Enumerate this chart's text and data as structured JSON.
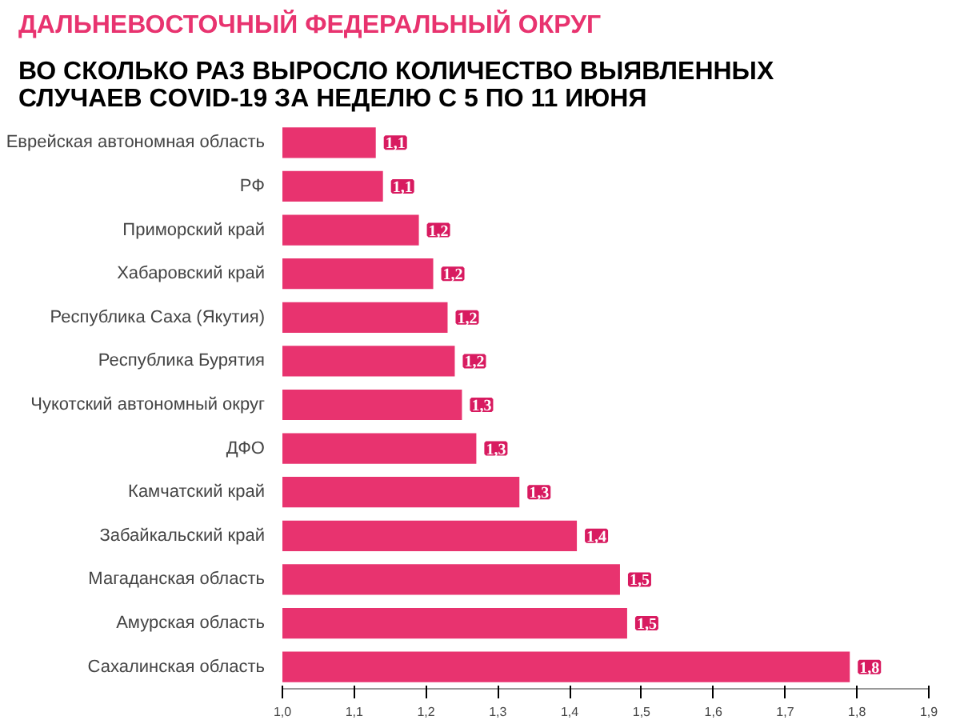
{
  "chart_data": {
    "type": "bar",
    "orientation": "horizontal",
    "title": "ДАЛЬНЕВОСТОЧНЫЙ ФЕДЕРАЛЬНЫЙ ОКРУГ",
    "subtitle": "ВО СКОЛЬКО РАЗ ВЫРОСЛО КОЛИЧЕСТВО ВЫЯВЛЕННЫХ СЛУЧАЕВ COVID-19 ЗА НЕДЕЛЮ С 5 ПО 11 ИЮНЯ",
    "categories": [
      "Еврейская автономная область",
      "РФ",
      "Приморский край",
      "Хабаровский край",
      "Республика Саха (Якутия)",
      "Республика Бурятия",
      "Чукотский автономный округ",
      "ДФО",
      "Камчатский край",
      "Забайкальский край",
      "Магаданская область",
      "Амурская область",
      "Сахалинская область"
    ],
    "values": [
      1.13,
      1.14,
      1.19,
      1.21,
      1.23,
      1.24,
      1.25,
      1.27,
      1.33,
      1.41,
      1.47,
      1.48,
      1.79
    ],
    "value_labels": [
      "1,1",
      "1,1",
      "1,2",
      "1,2",
      "1,2",
      "1,2",
      "1,3",
      "1,3",
      "1,3",
      "1,4",
      "1,5",
      "1,5",
      "1,8"
    ],
    "color": "#e8336f",
    "xlim": [
      1.0,
      1.9
    ],
    "xticks": [
      {
        "value": 1.0,
        "label": "1,0"
      },
      {
        "value": 1.1,
        "label": "1,1"
      },
      {
        "value": 1.2,
        "label": "1,2"
      },
      {
        "value": 1.3,
        "label": "1,3"
      },
      {
        "value": 1.4,
        "label": "1,4"
      },
      {
        "value": 1.5,
        "label": "1,5"
      },
      {
        "value": 1.6,
        "label": "1,6"
      },
      {
        "value": 1.7,
        "label": "1,7"
      },
      {
        "value": 1.8,
        "label": "1,8"
      },
      {
        "value": 1.9,
        "label": "1,9"
      }
    ],
    "grid": false
  }
}
